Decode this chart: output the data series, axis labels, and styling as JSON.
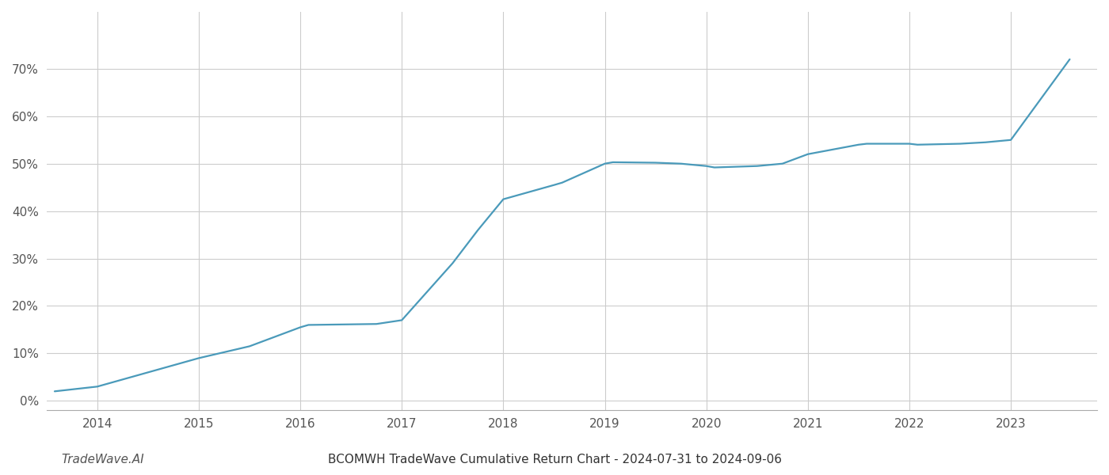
{
  "title": "BCOMWH TradeWave Cumulative Return Chart - 2024-07-31 to 2024-09-06",
  "watermark": "TradeWave.AI",
  "line_color": "#4a9aba",
  "background_color": "#ffffff",
  "grid_color": "#cccccc",
  "x_years": [
    2014,
    2015,
    2016,
    2017,
    2018,
    2019,
    2020,
    2021,
    2022,
    2023
  ],
  "x_data": [
    2013.58,
    2014.0,
    2014.5,
    2015.0,
    2015.5,
    2016.0,
    2016.08,
    2016.75,
    2017.0,
    2017.5,
    2017.75,
    2018.0,
    2018.5,
    2018.58,
    2019.0,
    2019.08,
    2019.5,
    2019.75,
    2020.0,
    2020.08,
    2020.5,
    2020.75,
    2021.0,
    2021.5,
    2021.58,
    2022.0,
    2022.08,
    2022.5,
    2022.58,
    2022.75,
    2023.0,
    2023.58
  ],
  "y_data": [
    2.0,
    3.0,
    6.0,
    9.0,
    11.5,
    15.5,
    16.0,
    16.2,
    17.0,
    29.0,
    36.0,
    42.5,
    45.5,
    46.0,
    50.0,
    50.3,
    50.2,
    50.0,
    49.5,
    49.2,
    49.5,
    50.0,
    52.0,
    54.0,
    54.2,
    54.2,
    54.0,
    54.2,
    54.3,
    54.5,
    55.0,
    72.0
  ],
  "ylim": [
    -2,
    82
  ],
  "yticks": [
    0,
    10,
    20,
    30,
    40,
    50,
    60,
    70
  ],
  "xlim": [
    2013.5,
    2023.85
  ],
  "title_fontsize": 11,
  "watermark_fontsize": 11,
  "tick_label_color": "#555555",
  "title_color": "#333333",
  "line_width": 1.6
}
